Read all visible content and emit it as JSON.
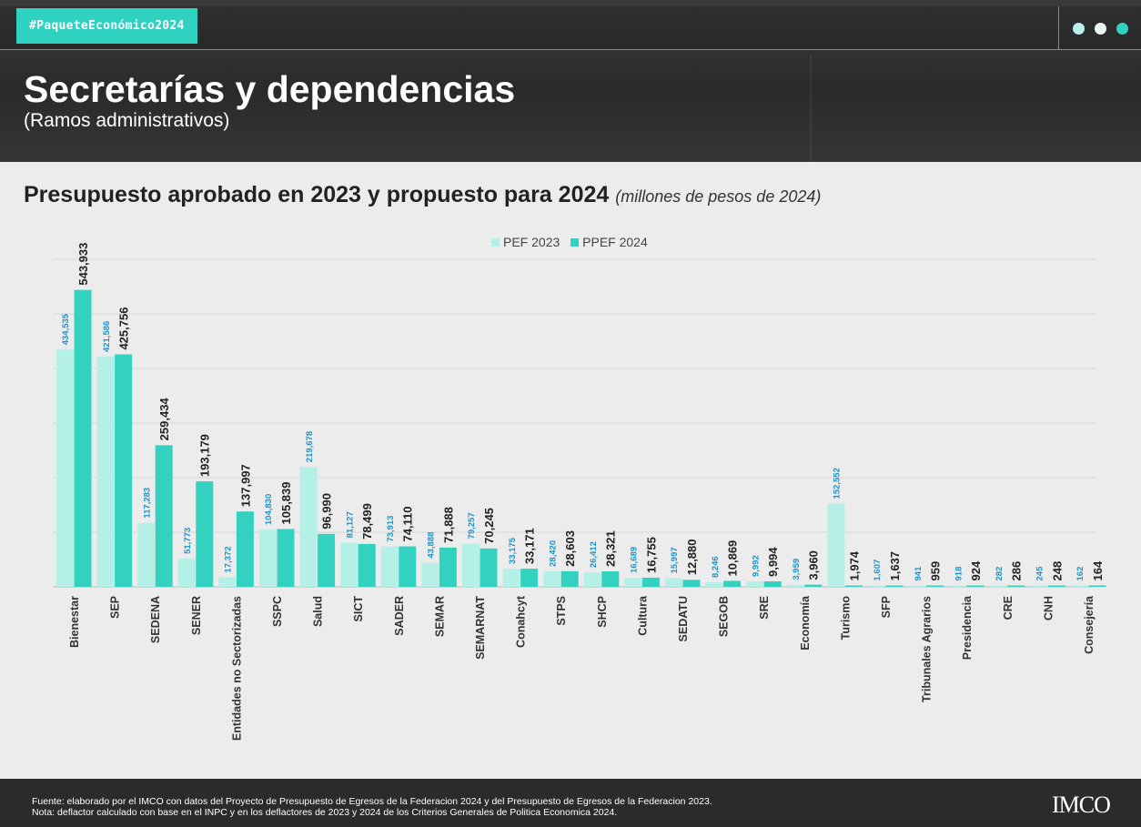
{
  "header": {
    "hashtag": "#PaqueteEconómico2024",
    "title": "Secretarías y dependencias",
    "subtitle": "(Ramos administrativos)"
  },
  "colors": {
    "pef2023": "#b5f0e7",
    "ppef2024": "#33d1c0",
    "accent": "#2fd1c0",
    "value_2023": "#1b93c9"
  },
  "chart_heading": {
    "main": "Presupuesto aprobado en 2023 y propuesto para 2024",
    "unit": "(millones de pesos de 2024)"
  },
  "legend": {
    "pef": "PEF 2023",
    "ppef": "PPEF 2024"
  },
  "chart_data": {
    "type": "bar",
    "title": "Presupuesto aprobado en 2023 y propuesto para 2024",
    "subtitle": "(millones de pesos de 2024)",
    "legend_position": "top-center",
    "ylim": [
      0,
      600000
    ],
    "grid": true,
    "categories": [
      "Bienestar",
      "SEP",
      "SEDENA",
      "SENER",
      "Entidades no Sectorizadas",
      "SSPC",
      "Salud",
      "SICT",
      "SADER",
      "SEMAR",
      "SEMARNAT",
      "Conahcyt",
      "STPS",
      "SHCP",
      "Cultura",
      "SEDATU",
      "SEGOB",
      "SRE",
      "Economía",
      "Turismo",
      "SFP",
      "Tribunales Agrarios",
      "Presidencia",
      "CRE",
      "CNH",
      "Consejería"
    ],
    "series": [
      {
        "name": "PEF 2023",
        "values": [
          434535,
          421586,
          117283,
          51773,
          17372,
          104830,
          219678,
          81127,
          73913,
          43888,
          79257,
          33175,
          28420,
          26412,
          16689,
          15997,
          8246,
          9992,
          3959,
          152552,
          1607,
          941,
          918,
          282,
          245,
          162
        ],
        "labels": [
          "434,535",
          "421,586",
          "117,283",
          "51,773",
          "17,372",
          "104,830",
          "219,678",
          "81,127",
          "73,913",
          "43,888",
          "79,257",
          "33,175",
          "28,420",
          "26,412",
          "16,689",
          "15,997",
          "8,246",
          "9,992",
          "3,959",
          "152,552",
          "1,607",
          "941",
          "918",
          "282",
          "245",
          "162"
        ]
      },
      {
        "name": "PPEF 2024",
        "values": [
          543933,
          425756,
          259434,
          193179,
          137997,
          105839,
          96990,
          78499,
          74110,
          71888,
          70245,
          33171,
          28603,
          28321,
          16755,
          12880,
          10869,
          9994,
          3960,
          1974,
          1637,
          959,
          924,
          286,
          248,
          164
        ],
        "labels": [
          "543,933",
          "425,756",
          "259,434",
          "193,179",
          "137,997",
          "105,839",
          "96,990",
          "78,499",
          "74,110",
          "71,888",
          "70,245",
          "33,171",
          "28,603",
          "28,321",
          "16,755",
          "12,880",
          "10,869",
          "9,994",
          "3,960",
          "1,974",
          "1,637",
          "959",
          "924",
          "286",
          "248",
          "164"
        ]
      }
    ]
  },
  "footer": {
    "source": "Fuente: elaborado por el IMCO con datos del Proyecto de Presupuesto de Egresos de la Federacion 2024 y del Presupuesto de Egresos de la Federacion 2023.",
    "note": "Nota: deflactor calculado con base en el INPC y en los deflactores de 2023 y 2024 de los Criterios Generales de Politica Economica 2024.",
    "logo": "IMCO"
  }
}
